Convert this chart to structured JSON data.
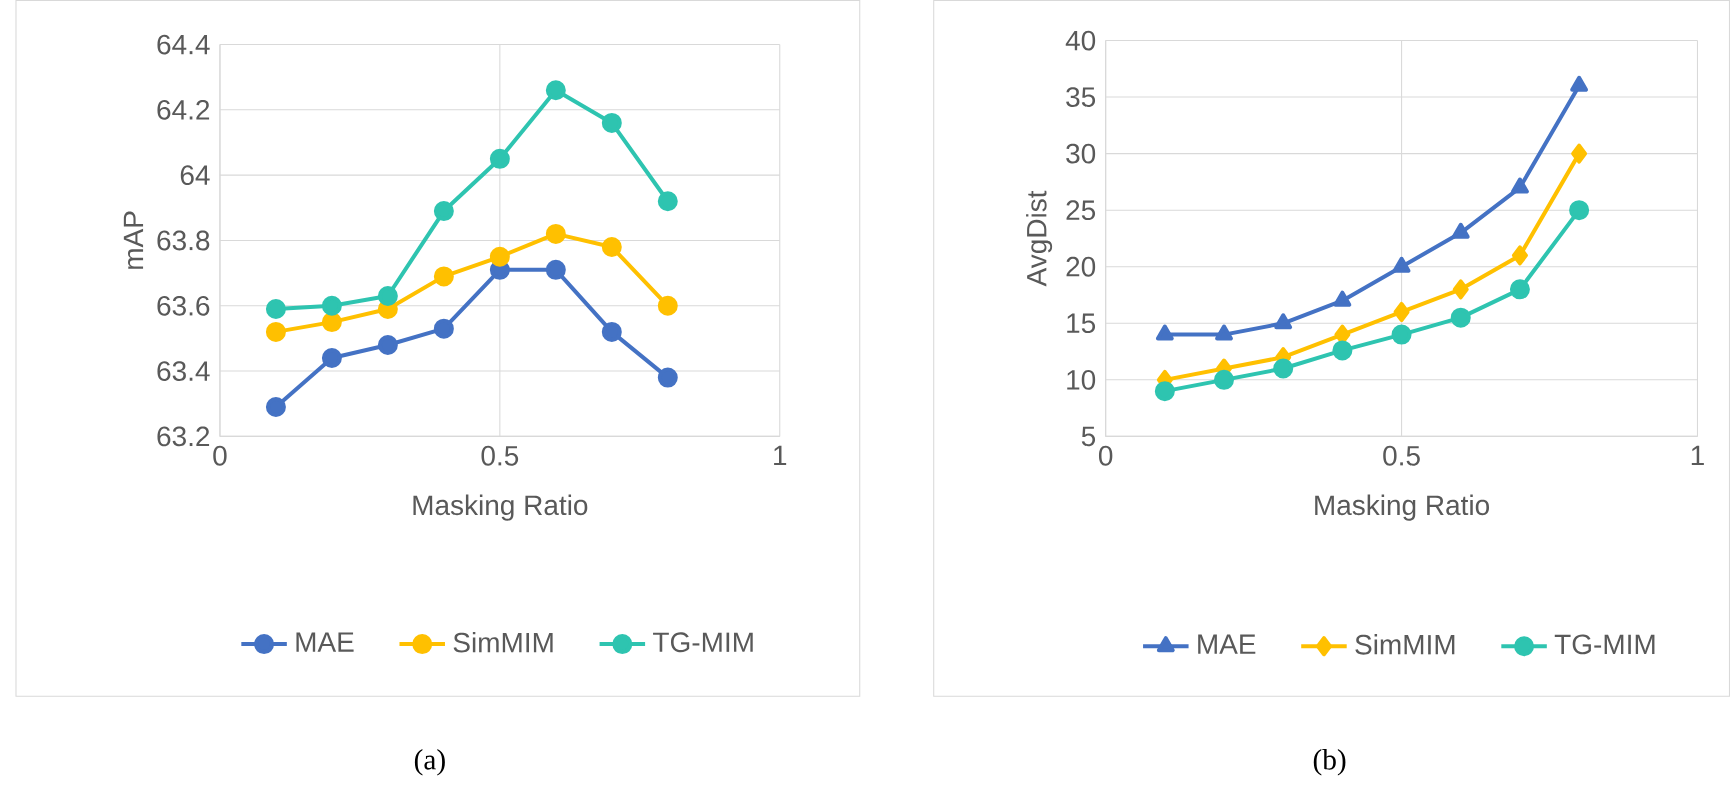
{
  "chart_data": [
    {
      "type": "line",
      "xlabel": "Masking Ratio",
      "ylabel": "mAP",
      "x": [
        0.1,
        0.2,
        0.3,
        0.4,
        0.5,
        0.6,
        0.7,
        0.8
      ],
      "xlim": [
        0,
        1
      ],
      "xticks": [
        0,
        0.5,
        1
      ],
      "ylim": [
        63.2,
        64.4
      ],
      "yticks": [
        {
          "value": 63.2,
          "label": "63.2"
        },
        {
          "value": 63.4,
          "label": "63.4"
        },
        {
          "value": 63.6,
          "label": "63.6"
        },
        {
          "value": 63.8,
          "label": "63.8"
        },
        {
          "value": 64,
          "label": "64"
        },
        {
          "value": 64.2,
          "label": "64.2"
        },
        {
          "value": 64.4,
          "label": "64.4"
        }
      ],
      "grid": true,
      "legend": "bottom",
      "marker": "circle",
      "annotations": [
        "(a)"
      ],
      "series": [
        {
          "name": "MAE",
          "color": "#4472c4",
          "values": [
            63.29,
            63.44,
            63.48,
            63.53,
            63.71,
            63.71,
            63.52,
            63.38
          ]
        },
        {
          "name": "SimMIM",
          "color": "#ffc000",
          "values": [
            63.52,
            63.55,
            63.59,
            63.69,
            63.75,
            63.82,
            63.78,
            63.6
          ]
        },
        {
          "name": "TG-MIM",
          "color": "#2ec4b0",
          "values": [
            63.59,
            63.6,
            63.63,
            63.89,
            64.05,
            64.26,
            64.16,
            63.92
          ]
        }
      ]
    },
    {
      "type": "line",
      "xlabel": "Masking Ratio",
      "ylabel": "AvgDist",
      "x": [
        0.1,
        0.2,
        0.3,
        0.4,
        0.5,
        0.6,
        0.7,
        0.8
      ],
      "xlim": [
        0,
        1
      ],
      "xticks": [
        0,
        0.5,
        1
      ],
      "ylim": [
        5,
        40
      ],
      "yticks": [
        5,
        10,
        15,
        20,
        25,
        30,
        35,
        40
      ],
      "grid": true,
      "legend": "bottom",
      "annotations": [
        "(b)"
      ],
      "series": [
        {
          "name": "MAE",
          "color": "#4472c4",
          "marker": "triangle",
          "values": [
            14,
            14,
            15,
            17,
            20,
            23,
            27,
            36
          ]
        },
        {
          "name": "SimMIM",
          "color": "#ffc000",
          "marker": "diamond",
          "values": [
            10,
            11,
            12,
            14,
            16,
            18,
            21,
            30
          ]
        },
        {
          "name": "TG-MIM",
          "color": "#2ec4b0",
          "marker": "circle",
          "values": [
            9,
            10,
            11,
            12.6,
            14,
            15.5,
            18,
            25
          ]
        }
      ]
    }
  ]
}
